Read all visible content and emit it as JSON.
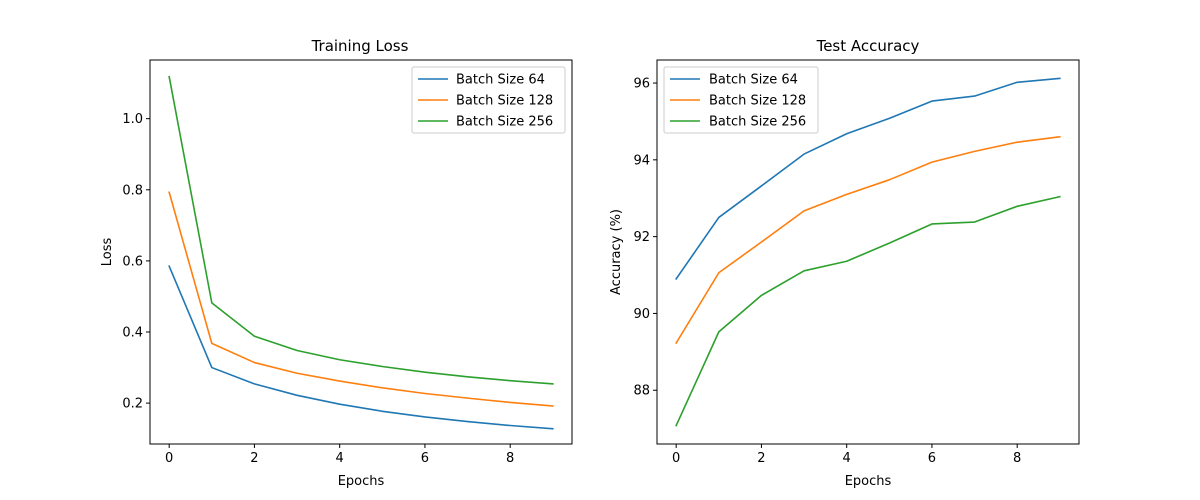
{
  "colors": {
    "batch_64": "#1f77b4",
    "batch_128": "#ff7f0e",
    "batch_256": "#2ca02c"
  },
  "chart_data": [
    {
      "type": "line",
      "title": "Training Loss",
      "xlabel": "Epochs",
      "ylabel": "Loss",
      "xlim": [
        -0.45,
        9.45
      ],
      "ylim": [
        0.085,
        1.165
      ],
      "xticks": [
        0,
        2,
        4,
        6,
        8
      ],
      "yticks": [
        0.2,
        0.4,
        0.6,
        0.8,
        1.0
      ],
      "ytick_labels": [
        "0.2",
        "0.4",
        "0.6",
        "0.8",
        "1.0"
      ],
      "grid": false,
      "legend_position": "top-right",
      "x": [
        0,
        1,
        2,
        3,
        4,
        5,
        6,
        7,
        8,
        9
      ],
      "series": [
        {
          "name": "Batch Size 64",
          "color": "#1f77b4",
          "values": [
            0.585,
            0.3,
            0.254,
            0.222,
            0.197,
            0.177,
            0.161,
            0.148,
            0.137,
            0.128
          ]
        },
        {
          "name": "Batch Size 128",
          "color": "#ff7f0e",
          "values": [
            0.793,
            0.368,
            0.314,
            0.284,
            0.262,
            0.243,
            0.227,
            0.214,
            0.202,
            0.192
          ]
        },
        {
          "name": "Batch Size 256",
          "color": "#2ca02c",
          "values": [
            1.118,
            0.482,
            0.388,
            0.348,
            0.322,
            0.303,
            0.287,
            0.274,
            0.263,
            0.254
          ]
        }
      ]
    },
    {
      "type": "line",
      "title": "Test Accuracy",
      "xlabel": "Epochs",
      "ylabel": "Accuracy (%)",
      "xlim": [
        -0.45,
        9.45
      ],
      "ylim": [
        86.6,
        96.6
      ],
      "xticks": [
        0,
        2,
        4,
        6,
        8
      ],
      "yticks": [
        88,
        90,
        92,
        94,
        96
      ],
      "ytick_labels": [
        "88",
        "90",
        "92",
        "94",
        "96"
      ],
      "grid": false,
      "legend_position": "top-left",
      "x": [
        0,
        1,
        2,
        3,
        4,
        5,
        6,
        7,
        8,
        9
      ],
      "series": [
        {
          "name": "Batch Size 64",
          "color": "#1f77b4",
          "values": [
            90.9,
            92.5,
            93.32,
            94.15,
            94.68,
            95.08,
            95.53,
            95.66,
            96.02,
            96.12
          ]
        },
        {
          "name": "Batch Size 128",
          "color": "#ff7f0e",
          "values": [
            89.23,
            91.06,
            91.86,
            92.67,
            93.1,
            93.48,
            93.94,
            94.22,
            94.46,
            94.6
          ]
        },
        {
          "name": "Batch Size 256",
          "color": "#2ca02c",
          "values": [
            87.08,
            89.52,
            90.47,
            91.11,
            91.36,
            91.83,
            92.33,
            92.38,
            92.79,
            93.04
          ]
        }
      ]
    }
  ]
}
